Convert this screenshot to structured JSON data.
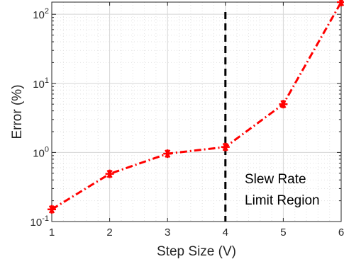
{
  "chart_data": {
    "type": "line",
    "xlabel": "Step Size (V)",
    "ylabel": "Error (%)",
    "xlim": [
      1,
      6
    ],
    "ylim": [
      0.1,
      150
    ],
    "yscale": "log",
    "grid": true,
    "x_ticks": [
      "1",
      "2",
      "3",
      "4",
      "5",
      "6"
    ],
    "y_ticks": [
      {
        "base": "10",
        "exp": "-1",
        "value": 0.1
      },
      {
        "base": "10",
        "exp": "0",
        "value": 1
      },
      {
        "base": "10",
        "exp": "1",
        "value": 10
      },
      {
        "base": "10",
        "exp": "2",
        "value": 100
      }
    ],
    "series": [
      {
        "x": [
          1,
          2,
          3,
          4,
          5,
          6
        ],
        "values": [
          0.15,
          0.49,
          0.96,
          1.2,
          5.0,
          150
        ],
        "color": "#ff0000",
        "line_style": "dash-dot",
        "marker": "asterisk"
      }
    ],
    "vline": {
      "x": 4,
      "color": "#000000",
      "line_style": "dashed"
    },
    "annotation": {
      "lines": [
        "Slew Rate",
        "Limit Region"
      ]
    }
  }
}
